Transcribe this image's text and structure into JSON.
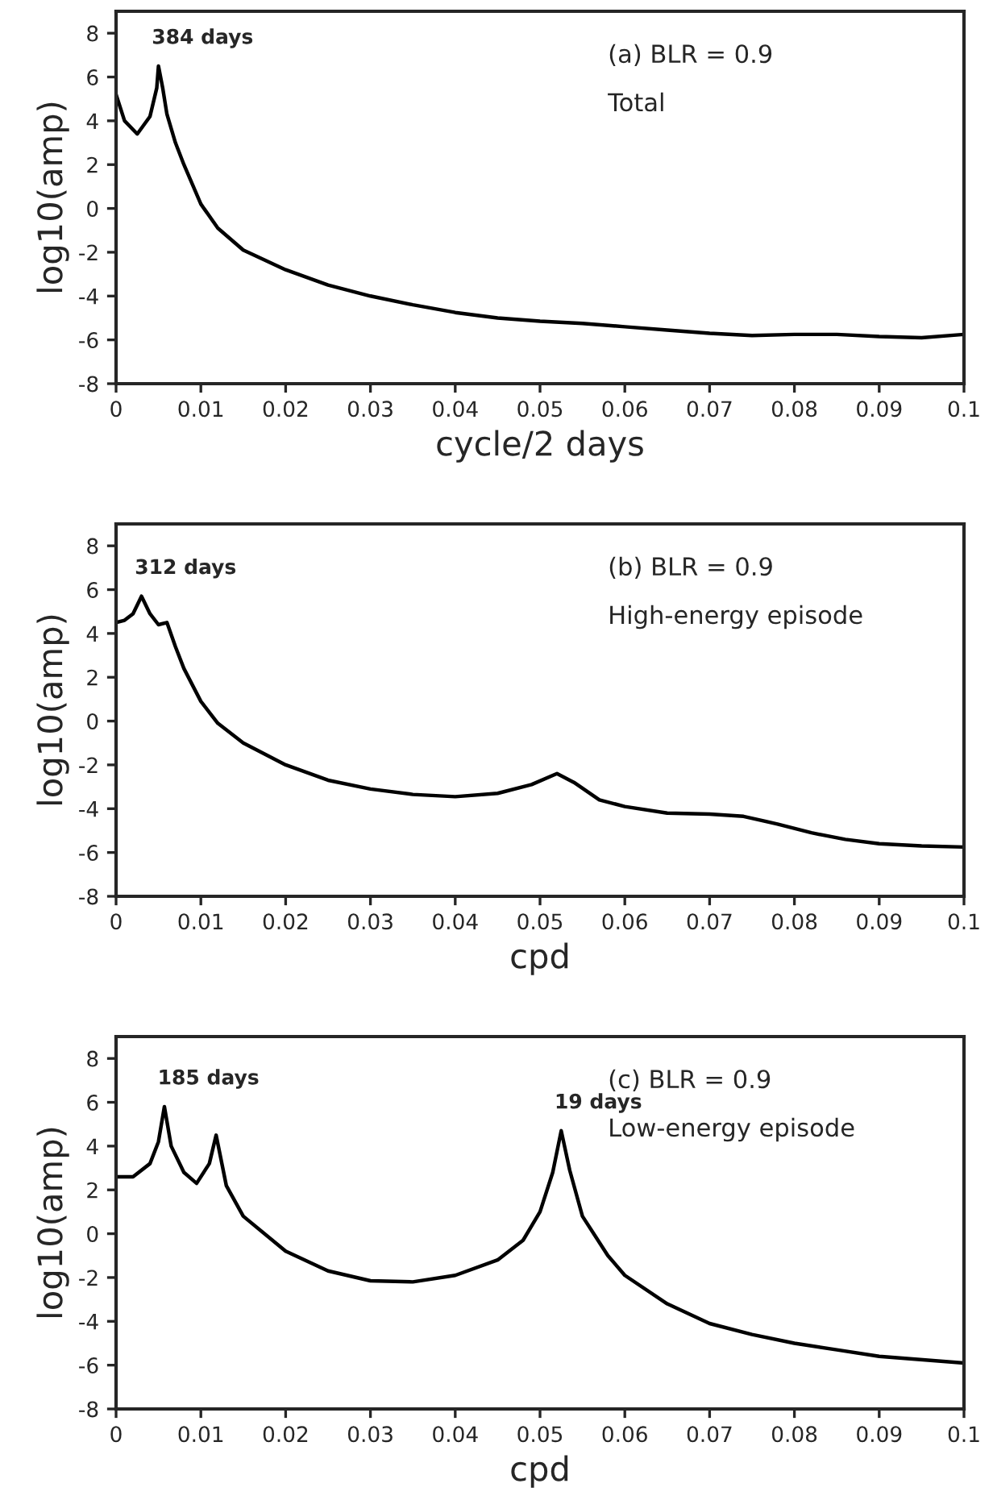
{
  "chart_data": [
    {
      "type": "line",
      "xlabel": "cycle/2 days",
      "ylabel": "log10(amp)",
      "xlim": [
        0,
        0.1
      ],
      "ylim": [
        -8,
        9
      ],
      "xticks": [
        0,
        0.01,
        0.02,
        0.03,
        0.04,
        0.05,
        0.06,
        0.07,
        0.08,
        0.09,
        0.1
      ],
      "yticks": [
        -8,
        -6,
        -4,
        -2,
        0,
        2,
        4,
        6,
        8
      ],
      "grid": false,
      "series": [
        {
          "color": "#000000",
          "x": [
            0,
            0.001,
            0.0025,
            0.004,
            0.0048,
            0.005,
            0.0055,
            0.006,
            0.007,
            0.008,
            0.01,
            0.012,
            0.015,
            0.02,
            0.025,
            0.03,
            0.035,
            0.04,
            0.045,
            0.05,
            0.055,
            0.06,
            0.065,
            0.07,
            0.075,
            0.08,
            0.085,
            0.09,
            0.095,
            0.1
          ],
          "values": [
            5.2,
            4.0,
            3.4,
            4.2,
            5.5,
            6.5,
            5.5,
            4.3,
            3.0,
            2.0,
            0.2,
            -0.9,
            -1.9,
            -2.8,
            -3.5,
            -4.0,
            -4.4,
            -4.75,
            -5.0,
            -5.15,
            -5.25,
            -5.4,
            -5.55,
            -5.7,
            -5.8,
            -5.75,
            -5.75,
            -5.85,
            -5.9,
            -5.75
          ]
        }
      ],
      "annotations": [
        {
          "text": "384 days",
          "x": 0.005,
          "y": 6.5
        },
        "(a) BLR = 0.9",
        "Total"
      ]
    },
    {
      "type": "line",
      "xlabel": "cpd",
      "ylabel": "log10(amp)",
      "xlim": [
        0,
        0.1
      ],
      "ylim": [
        -8,
        9
      ],
      "xticks": [
        0,
        0.01,
        0.02,
        0.03,
        0.04,
        0.05,
        0.06,
        0.07,
        0.08,
        0.09,
        0.1
      ],
      "yticks": [
        -8,
        -6,
        -4,
        -2,
        0,
        2,
        4,
        6,
        8
      ],
      "grid": false,
      "series": [
        {
          "color": "#000000",
          "x": [
            0,
            0.001,
            0.002,
            0.003,
            0.004,
            0.005,
            0.006,
            0.007,
            0.008,
            0.01,
            0.012,
            0.015,
            0.02,
            0.025,
            0.03,
            0.035,
            0.04,
            0.045,
            0.049,
            0.052,
            0.054,
            0.057,
            0.06,
            0.065,
            0.07,
            0.074,
            0.078,
            0.082,
            0.086,
            0.09,
            0.095,
            0.1
          ],
          "values": [
            4.5,
            4.6,
            4.9,
            5.7,
            4.9,
            4.4,
            4.5,
            3.4,
            2.4,
            0.9,
            -0.1,
            -1.0,
            -2.0,
            -2.7,
            -3.1,
            -3.35,
            -3.45,
            -3.3,
            -2.9,
            -2.4,
            -2.8,
            -3.6,
            -3.9,
            -4.2,
            -4.25,
            -4.35,
            -4.7,
            -5.1,
            -5.4,
            -5.6,
            -5.7,
            -5.75
          ]
        }
      ],
      "annotations": [
        {
          "text": "312 days",
          "x": 0.003,
          "y": 5.7
        },
        "(b) BLR = 0.9",
        "High-energy episode"
      ]
    },
    {
      "type": "line",
      "xlabel": "cpd",
      "ylabel": "log10(amp)",
      "xlim": [
        0,
        0.1
      ],
      "ylim": [
        -8,
        9
      ],
      "xticks": [
        0,
        0.01,
        0.02,
        0.03,
        0.04,
        0.05,
        0.06,
        0.07,
        0.08,
        0.09,
        0.1
      ],
      "yticks": [
        -8,
        -6,
        -4,
        -2,
        0,
        2,
        4,
        6,
        8
      ],
      "grid": false,
      "series": [
        {
          "color": "#000000",
          "x": [
            0,
            0.002,
            0.004,
            0.005,
            0.0057,
            0.0065,
            0.008,
            0.0095,
            0.011,
            0.0118,
            0.013,
            0.015,
            0.02,
            0.025,
            0.03,
            0.035,
            0.04,
            0.045,
            0.048,
            0.05,
            0.0515,
            0.0525,
            0.0535,
            0.055,
            0.058,
            0.06,
            0.065,
            0.07,
            0.075,
            0.08,
            0.085,
            0.09,
            0.1
          ],
          "values": [
            2.6,
            2.6,
            3.2,
            4.2,
            5.8,
            4.0,
            2.8,
            2.3,
            3.2,
            4.5,
            2.2,
            0.8,
            -0.8,
            -1.7,
            -2.15,
            -2.2,
            -1.9,
            -1.2,
            -0.3,
            1.0,
            2.8,
            4.7,
            2.9,
            0.8,
            -1.0,
            -1.9,
            -3.2,
            -4.1,
            -4.6,
            -5.0,
            -5.3,
            -5.6,
            -5.9
          ]
        }
      ],
      "annotations": [
        {
          "text": "185 days",
          "x": 0.0057,
          "y": 5.8
        },
        {
          "text": "19 days",
          "x": 0.0525,
          "y": 4.7
        },
        "(c) BLR = 0.9",
        "Low-energy episode"
      ]
    }
  ]
}
